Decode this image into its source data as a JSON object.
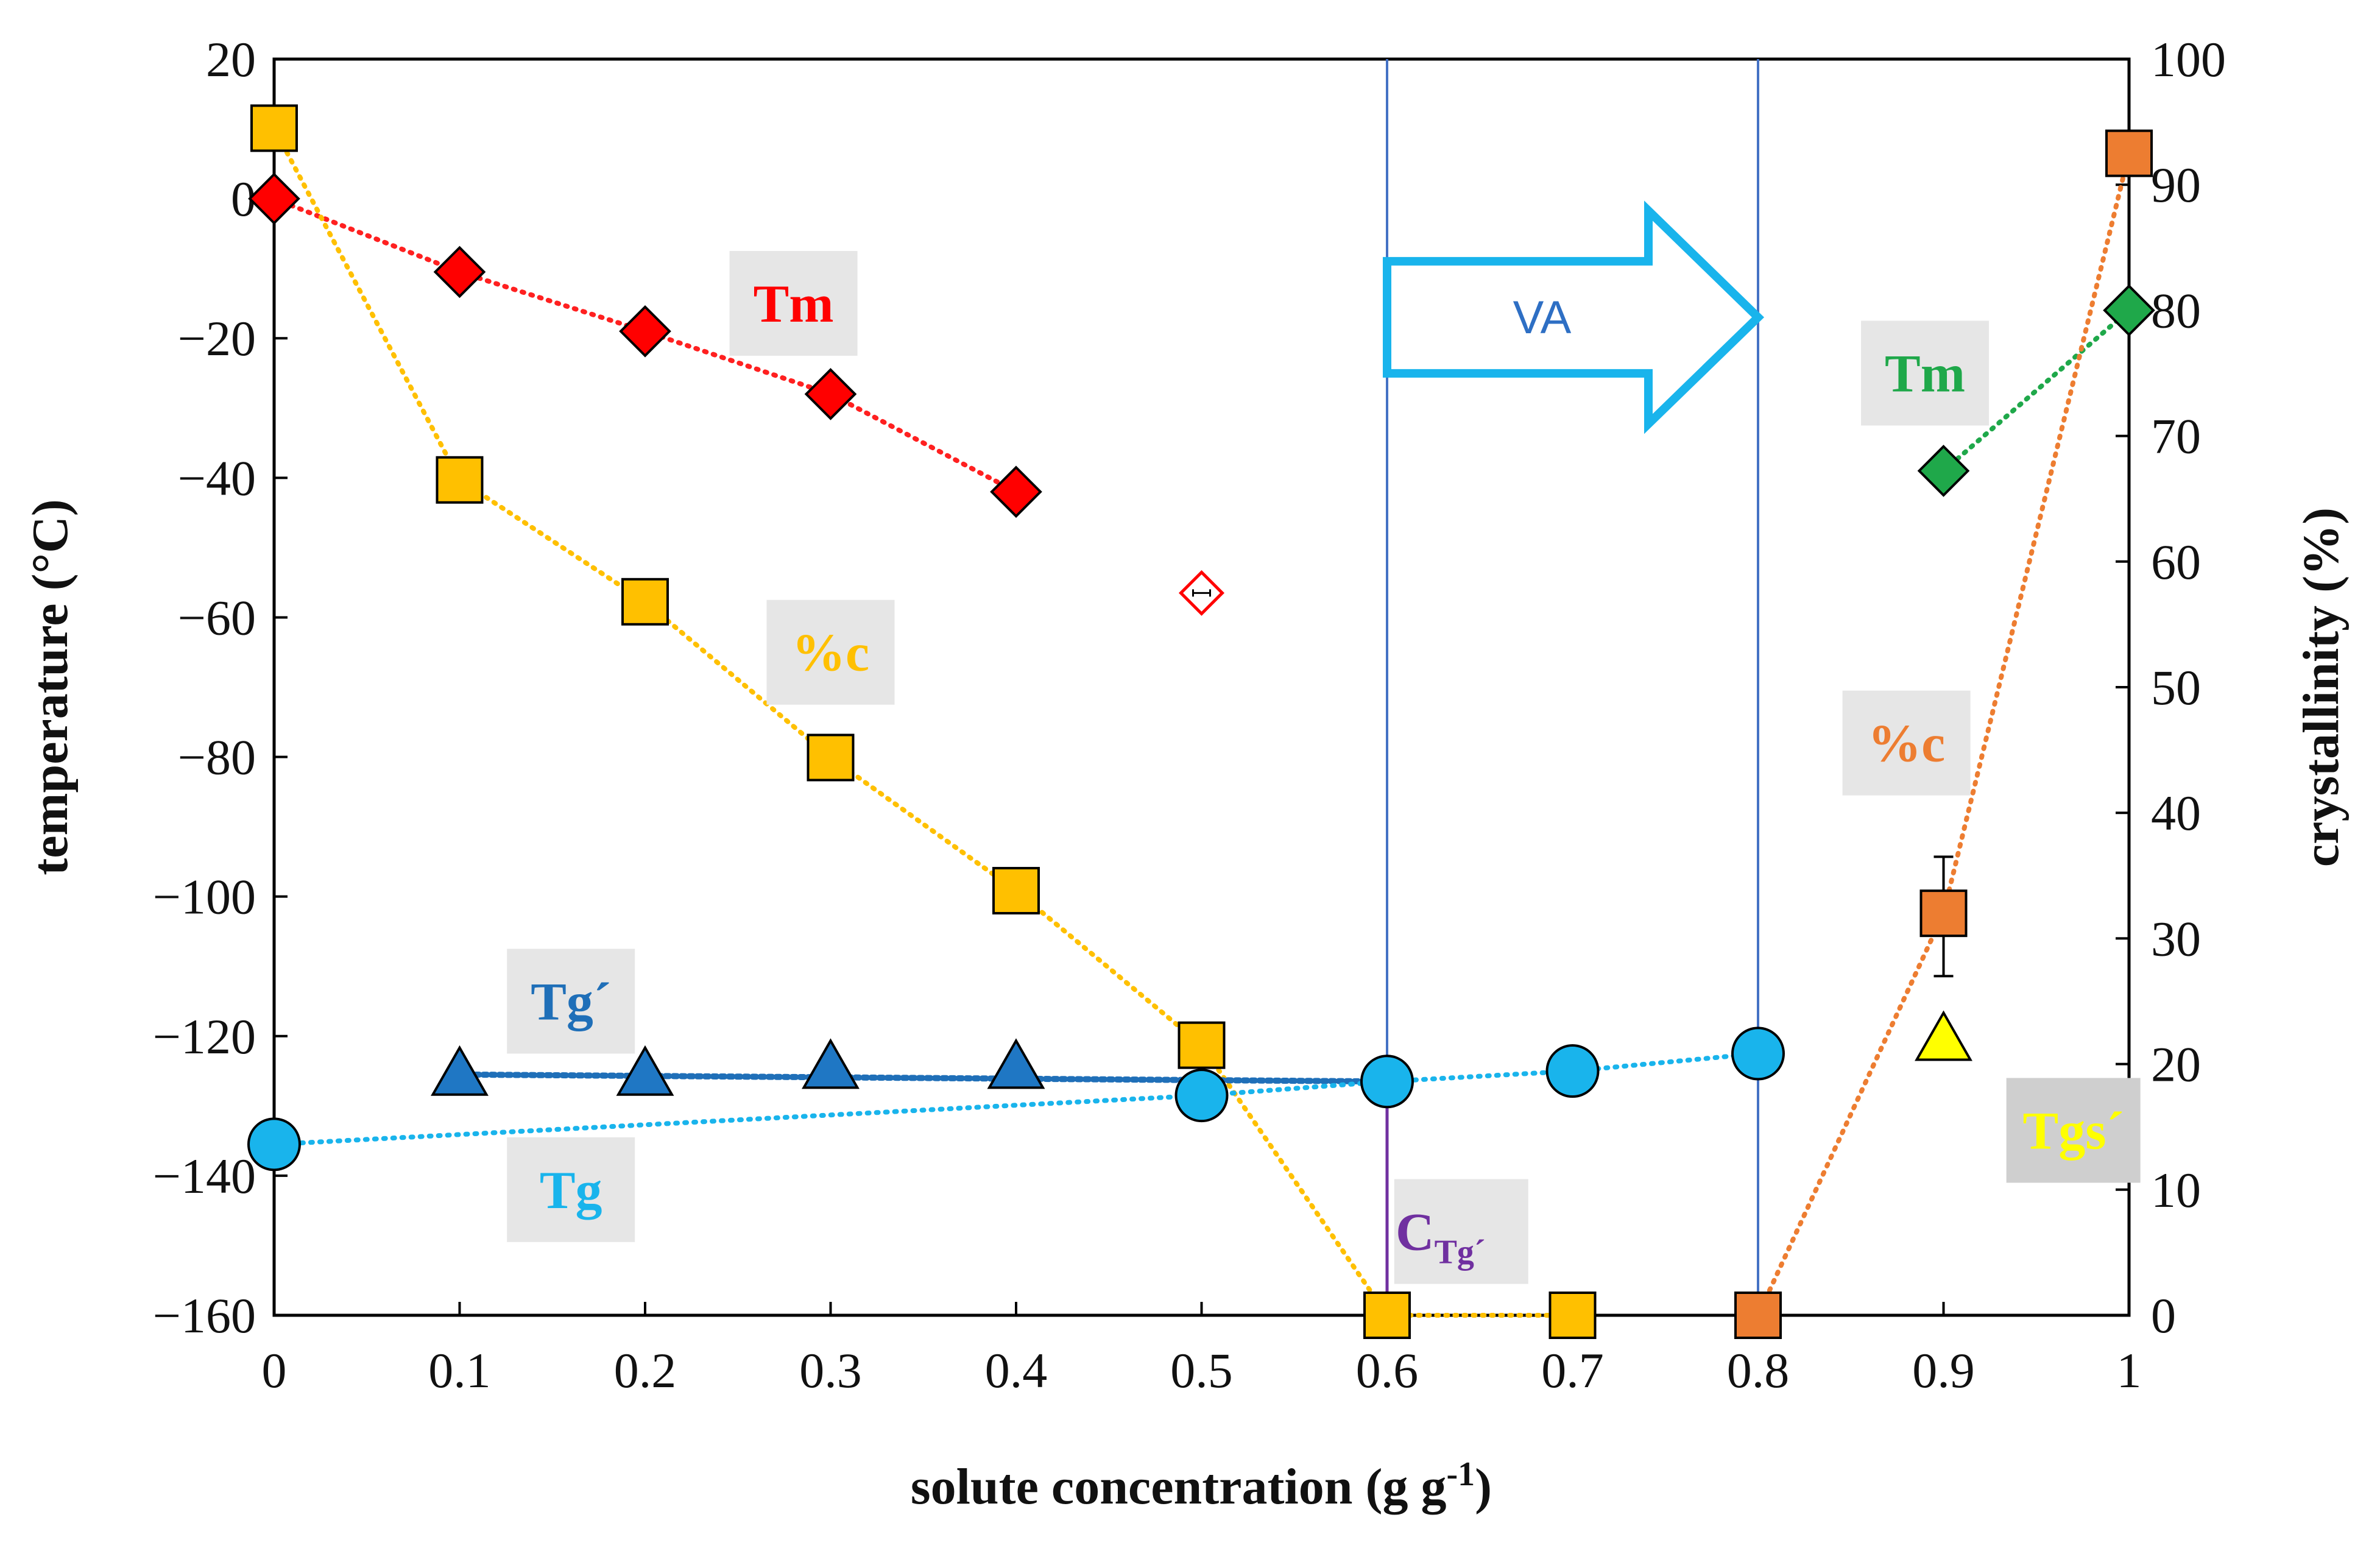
{
  "chart_data": {
    "type": "scatter",
    "xlabel": "solute concentration (g g",
    "xlabel_sup": "-1",
    "xlabel_end": ")",
    "ylabel_left": "temperature (°C)",
    "ylabel_right": "crystallinity (%)",
    "xlim": [
      0,
      1
    ],
    "ylim_left": [
      -160,
      20
    ],
    "ylim_right": [
      0,
      100
    ],
    "x_ticks": [
      0,
      0.1,
      0.2,
      0.3,
      0.4,
      0.5,
      0.6,
      0.7,
      0.8,
      0.9,
      1
    ],
    "x_tick_labels": [
      "0",
      "0.1",
      "0.2",
      "0.3",
      "0.4",
      "0.5",
      "0.6",
      "0.7",
      "0.8",
      "0.9",
      "1"
    ],
    "y_left_ticks": [
      20,
      0,
      -20,
      -40,
      -60,
      -80,
      -100,
      -120,
      -140,
      -160
    ],
    "y_left_tick_labels": [
      "20",
      "0",
      "−20",
      "−40",
      "−60",
      "−80",
      "−100",
      "−120",
      "−140",
      "−160"
    ],
    "y_right_ticks": [
      100,
      90,
      80,
      70,
      60,
      50,
      40,
      30,
      20,
      10,
      0
    ],
    "y_right_tick_labels": [
      "100",
      "90",
      "80",
      "70",
      "60",
      "50",
      "40",
      "30",
      "20",
      "10",
      "0"
    ],
    "vertical_lines_x": [
      0.6,
      0.8
    ],
    "series": [
      {
        "name": "Tm",
        "axis": "left",
        "marker": "diamond",
        "color": "#FF0000",
        "line_color": "#FF2020",
        "x": [
          0,
          0.1,
          0.2,
          0.3,
          0.4
        ],
        "y": [
          0,
          -10.5,
          -19,
          -28,
          -42
        ]
      },
      {
        "name": "%c",
        "axis": "right",
        "marker": "square",
        "color": "#FFC000",
        "line_color": "#FFC000",
        "x": [
          0,
          0.1,
          0.2,
          0.3,
          0.4,
          0.5,
          0.6,
          0.7
        ],
        "y": [
          94.5,
          66.5,
          56.8,
          44.4,
          33.8,
          21.5,
          0,
          0
        ]
      },
      {
        "name": "Tg´",
        "axis": "left",
        "marker": "triangle",
        "color": "#1F77C4",
        "line_color": "#1F6FB8",
        "x": [
          0.1,
          0.2,
          0.3,
          0.4
        ],
        "y": [
          -125.5,
          -125.5,
          -124.5,
          -124.5
        ],
        "trend": {
          "x": [
            0.1,
            0.6
          ],
          "y": [
            -125.5,
            -126.5
          ]
        }
      },
      {
        "name": "Tg",
        "axis": "left",
        "marker": "circle",
        "color": "#19B4EC",
        "line_color": "#19B4EC",
        "x": [
          0,
          0.5,
          0.6,
          0.7,
          0.8
        ],
        "y": [
          -135.5,
          -128.5,
          -126.5,
          -125,
          -122.5
        ]
      },
      {
        "name": "Tm (high conc.)",
        "axis": "left",
        "marker": "diamond",
        "color": "#1FA84A",
        "line_color": "#1FA84A",
        "x": [
          0.9,
          1.0
        ],
        "y": [
          -39,
          -16
        ]
      },
      {
        "name": "%c (high conc.)",
        "axis": "right",
        "marker": "square",
        "color": "#ED7D31",
        "line_color": "#ED7D31",
        "x": [
          0.8,
          0.9,
          1.0
        ],
        "y": [
          0,
          32,
          92.5
        ],
        "error": {
          "x": 0.9,
          "low": 27,
          "high": 36.5
        }
      },
      {
        "name": "Tgs´",
        "axis": "left",
        "marker": "triangle",
        "color": "#FFFF00",
        "line_color": "#FFFF00",
        "x": [
          0.9
        ],
        "y": [
          -120.5
        ]
      },
      {
        "name": "open point",
        "axis": "left",
        "marker": "open-diamond",
        "color": "#FF0000",
        "line_color": "#FF0000",
        "x": [
          0.5
        ],
        "y": [
          -56.5
        ]
      }
    ],
    "annotations": {
      "Tm_red": {
        "text": "Tm",
        "color": "#FF0000",
        "box": "#E6E6E6",
        "at": [
          0.28,
          -15
        ]
      },
      "pc_yellow": {
        "text": "%c",
        "color": "#FFC000",
        "box": "#E6E6E6",
        "at": [
          0.3,
          -65
        ]
      },
      "Tgp_blue": {
        "text": "Tg´",
        "color": "#1F6FB8",
        "box": "#E6E6E6",
        "at": [
          0.16,
          -115
        ]
      },
      "Tg_cyan": {
        "text": "Tg",
        "color": "#19B4EC",
        "box": "#E6E6E6",
        "at": [
          0.16,
          -142
        ]
      },
      "Tm_green": {
        "text": "Tm",
        "color": "#1FA84A",
        "box": "#E6E6E6",
        "at": [
          0.89,
          -25
        ]
      },
      "pc_orange": {
        "text": "%c",
        "color": "#ED7D31",
        "box": "#E6E6E6",
        "at": [
          0.88,
          -78
        ]
      },
      "Tgs_yellow": {
        "text": "Tgs´",
        "color": "#FFFF00",
        "box": "#CFCFCF",
        "at": [
          0.97,
          -133.5
        ]
      },
      "CTg": {
        "text": "C",
        "sub": "Tg´",
        "color": "#7030A0",
        "box": "#E6E6E6",
        "at": [
          0.64,
          -148
        ]
      },
      "VA": {
        "text": "VA",
        "color": "#2E6FC4",
        "arrow_color": "#19B4EC",
        "from_x": 0.6,
        "to_x": 0.8,
        "at_y": -17
      }
    },
    "ctg_arrow": {
      "x": 0.6,
      "from_y": -126.5,
      "to_y": -160,
      "color": "#7030A0"
    }
  }
}
